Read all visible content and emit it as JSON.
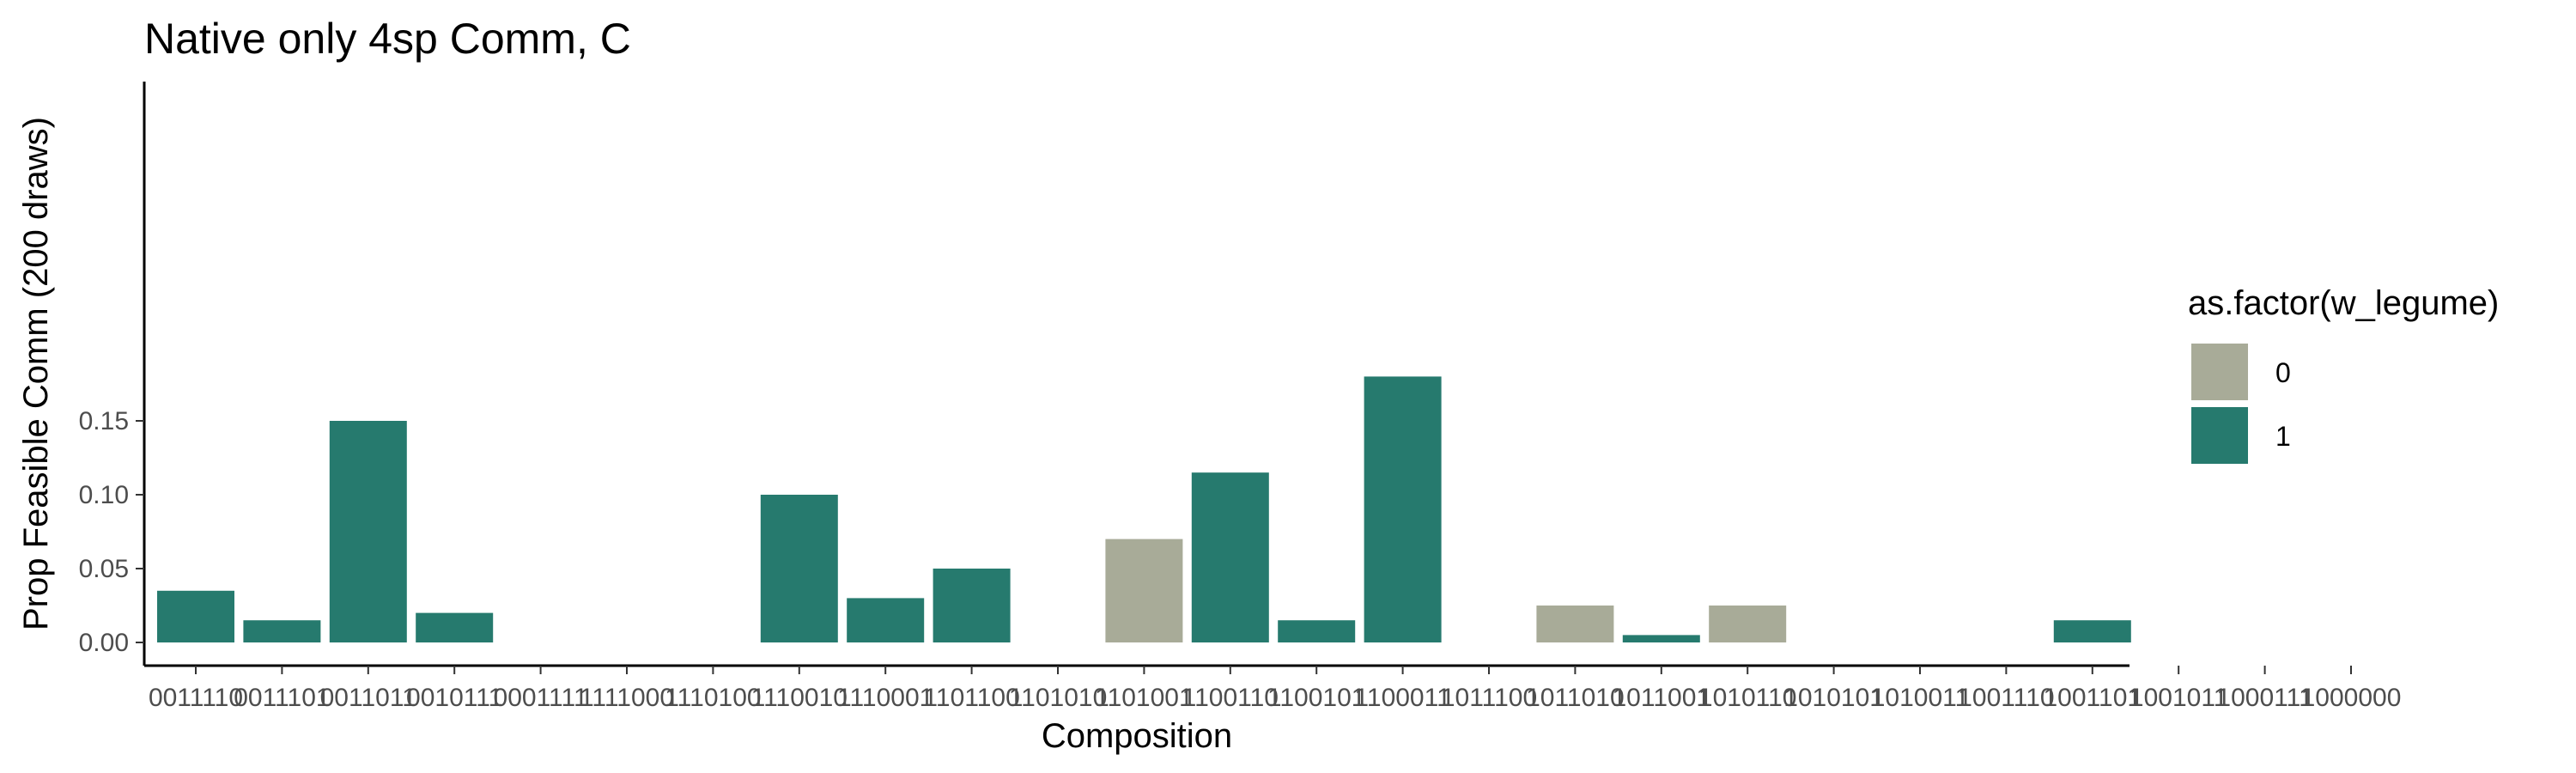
{
  "chart_data": {
    "type": "bar",
    "title": "Native only 4sp Comm, C",
    "xlabel": "Composition",
    "ylabel": "Prop Feasible Comm (200 draws)",
    "ylim": [
      0,
      0.18
    ],
    "yticks": [
      "0.00",
      "0.05",
      "0.10",
      "0.15"
    ],
    "ytick_values": [
      0,
      0.05,
      0.1,
      0.15
    ],
    "categories": [
      "0011110",
      "0011101",
      "0011011",
      "0010111",
      "0001111",
      "1111000",
      "1110100",
      "1110010",
      "1110001",
      "1101100",
      "1101010",
      "1101001",
      "1100110",
      "1100101",
      "1100011",
      "1011100",
      "1011010",
      "1011001",
      "1010110",
      "1010101",
      "1010011",
      "1001110",
      "1001101",
      "1001011",
      "1000111",
      "1000000"
    ],
    "values": [
      0.035,
      0.015,
      0.15,
      0.02,
      0,
      0,
      0,
      0.1,
      0.03,
      0.05,
      0,
      0.07,
      0.115,
      0.015,
      0.18,
      0,
      0.025,
      0.005,
      0.025,
      0,
      0,
      0,
      0.015,
      0,
      0,
      0
    ],
    "w_legume": [
      1,
      1,
      1,
      1,
      0,
      0,
      0,
      1,
      1,
      1,
      0,
      0,
      1,
      1,
      1,
      0,
      0,
      1,
      0,
      0,
      0,
      0,
      1,
      0,
      0,
      0
    ],
    "legend": {
      "title": "as.factor(w_legume)",
      "placement": "right",
      "entries": [
        {
          "label": "0",
          "color": "#a8ab98"
        },
        {
          "label": "1",
          "color": "#267a6e"
        }
      ]
    },
    "grid": false
  }
}
